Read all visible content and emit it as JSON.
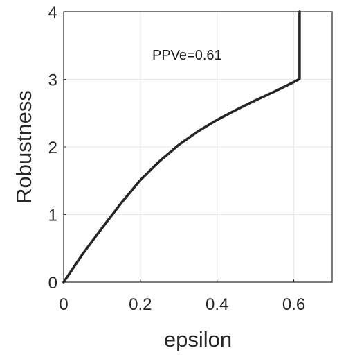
{
  "chart_data": {
    "type": "line",
    "xlabel": "epsilon",
    "ylabel": "Robustness",
    "xlim": [
      0,
      0.7
    ],
    "ylim": [
      0,
      4
    ],
    "x_ticks": [
      "0",
      "0.2",
      "0.4",
      "0.6"
    ],
    "y_ticks": [
      "0",
      "1",
      "2",
      "3",
      "4"
    ],
    "grid": true,
    "annotation": "PPVe=0.61",
    "series": [
      {
        "color": "#262626",
        "x": [
          0,
          0.05,
          0.1,
          0.15,
          0.2,
          0.25,
          0.3,
          0.35,
          0.4,
          0.45,
          0.5,
          0.55,
          0.6,
          0.61,
          0.615,
          0.615
        ],
        "y": [
          0,
          0.42,
          0.8,
          1.17,
          1.51,
          1.79,
          2.03,
          2.23,
          2.4,
          2.55,
          2.69,
          2.82,
          2.96,
          2.99,
          3.01,
          4.0
        ]
      }
    ]
  }
}
